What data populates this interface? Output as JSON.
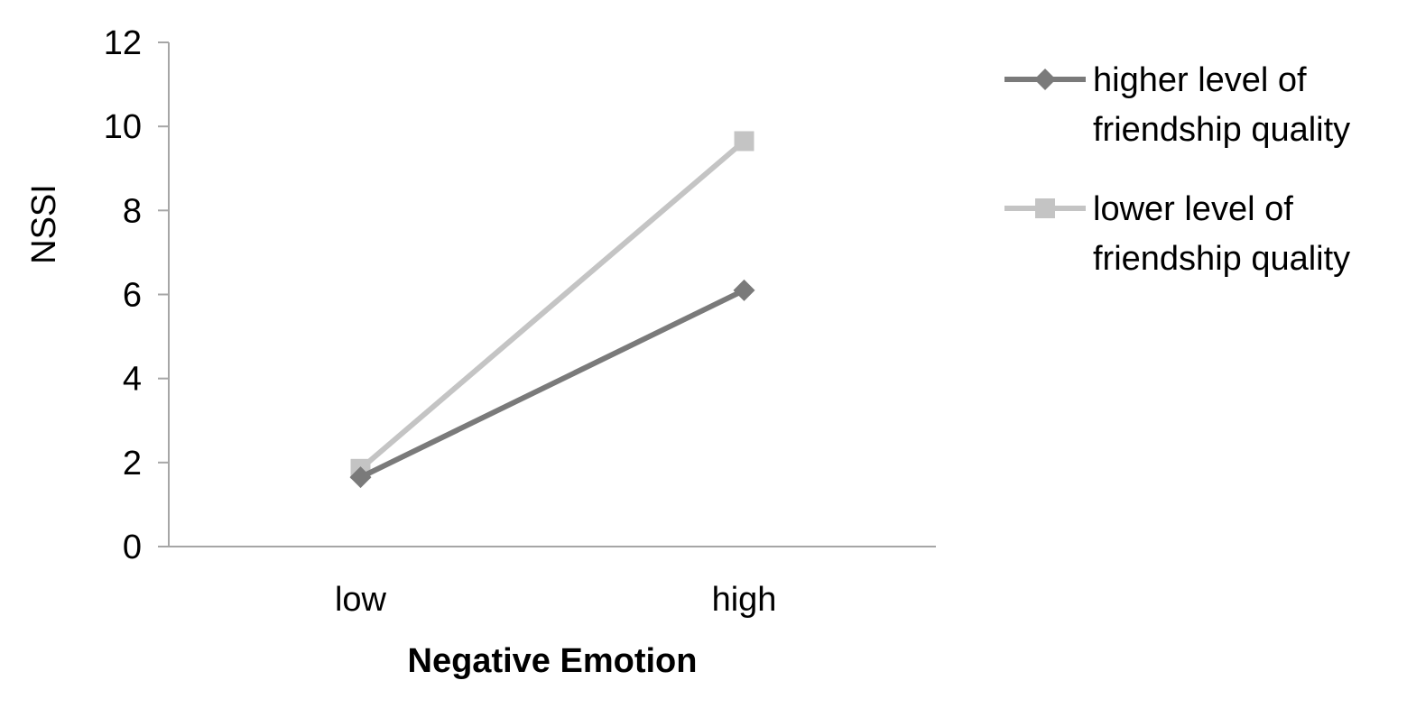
{
  "chart_data": {
    "type": "line",
    "title": "",
    "xlabel": "Negative Emotion",
    "ylabel": "NSSI",
    "categories": [
      "low",
      "high"
    ],
    "ylim": [
      0,
      12
    ],
    "yticks": [
      0,
      2,
      4,
      6,
      8,
      10,
      12
    ],
    "grid": false,
    "legend_position": "right",
    "series": [
      {
        "name": "higher level of friendship quality",
        "name_lines": [
          "higher level of",
          "friendship quality"
        ],
        "values": [
          1.65,
          6.1
        ],
        "color": "#7a7a7a",
        "marker": "diamond"
      },
      {
        "name": "lower level of friendship quality",
        "name_lines": [
          "lower level of",
          "friendship quality"
        ],
        "values": [
          1.85,
          9.65
        ],
        "color": "#c4c4c4",
        "marker": "square"
      }
    ]
  }
}
